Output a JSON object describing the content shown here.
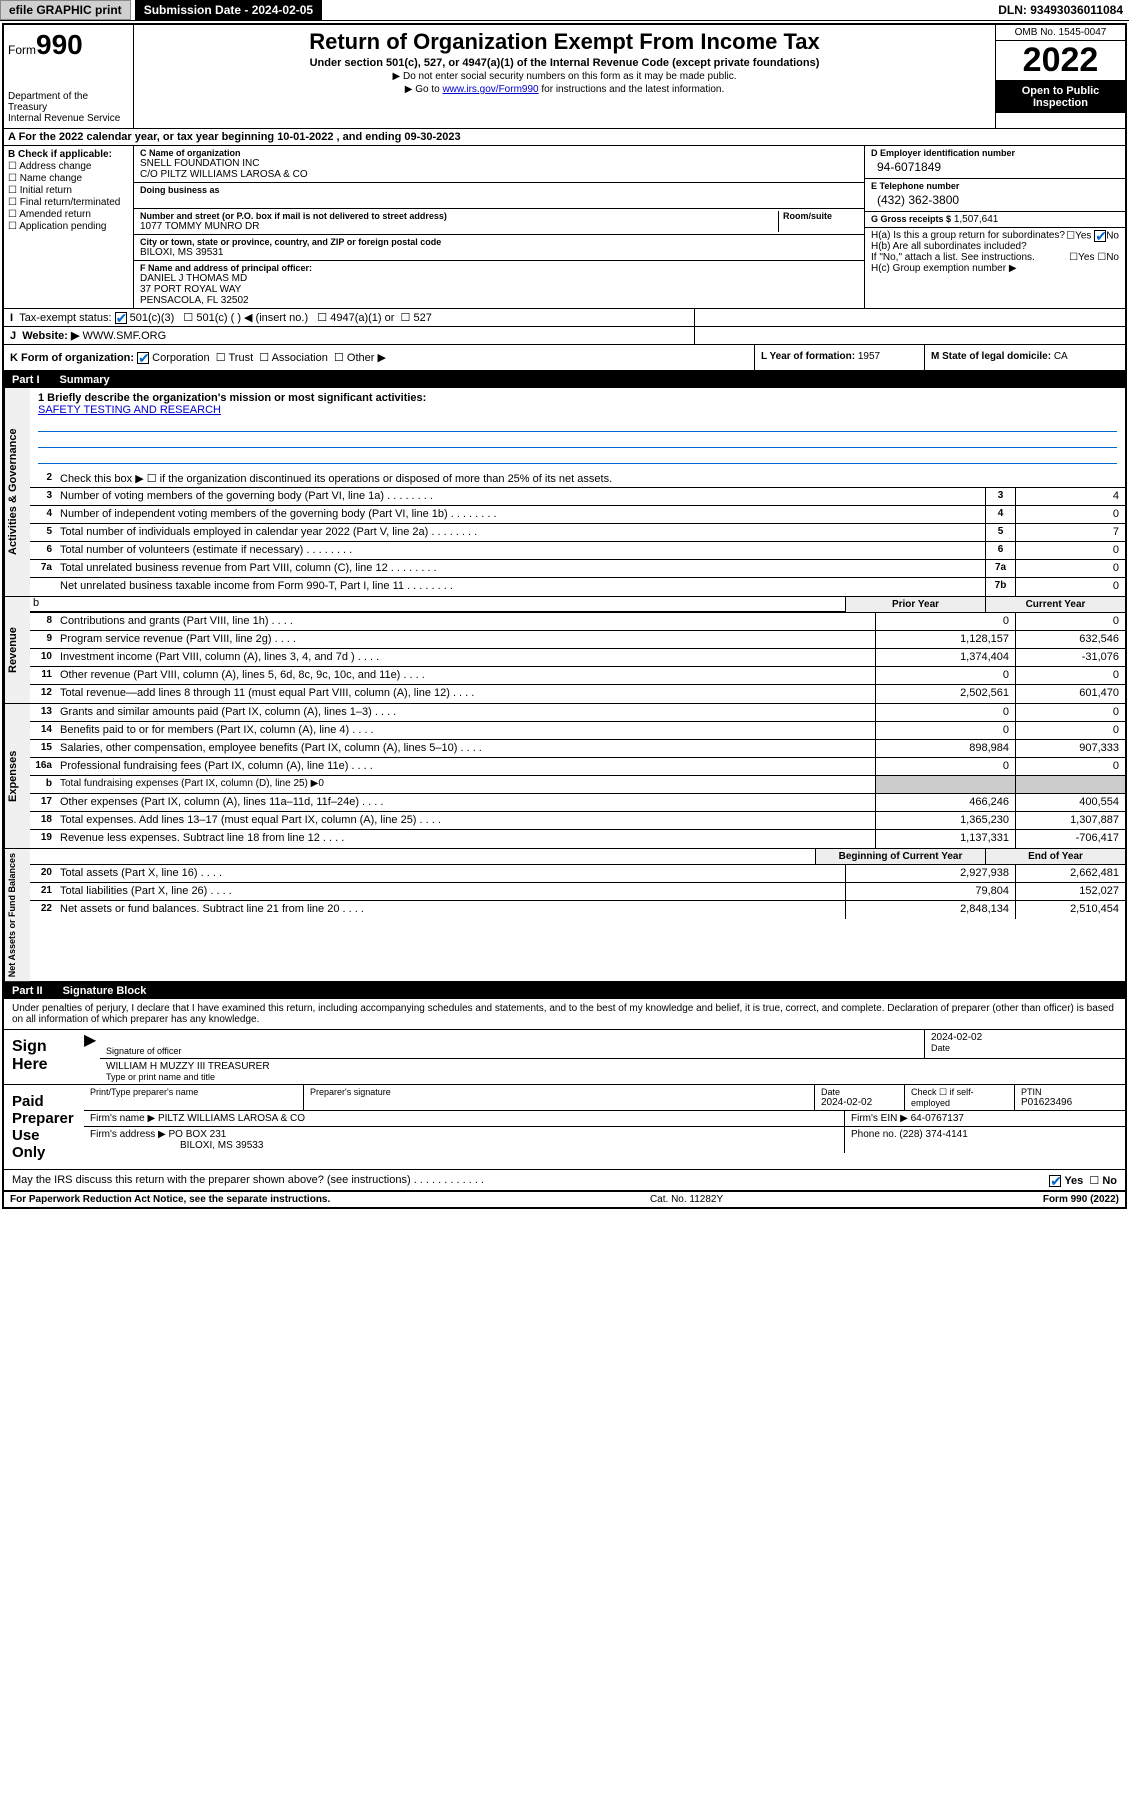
{
  "topbar": {
    "efile": "efile GRAPHIC print",
    "subdate_label": "Submission Date - 2024-02-05",
    "dln": "DLN: 93493036011084"
  },
  "header": {
    "form_word": "Form",
    "form_num": "990",
    "dept": "Department of the Treasury",
    "irs": "Internal Revenue Service",
    "title": "Return of Organization Exempt From Income Tax",
    "sub": "Under section 501(c), 527, or 4947(a)(1) of the Internal Revenue Code (except private foundations)",
    "note1": "▶ Do not enter social security numbers on this form as it may be made public.",
    "note2_pre": "▶ Go to ",
    "note2_link": "www.irs.gov/Form990",
    "note2_post": " for instructions and the latest information.",
    "omb": "OMB No. 1545-0047",
    "year": "2022",
    "open": "Open to Public Inspection"
  },
  "row_a": "A For the 2022 calendar year, or tax year beginning 10-01-2022   , and ending 09-30-2023",
  "sec_b": {
    "hdr": "B Check if applicable:",
    "items": [
      "Address change",
      "Name change",
      "Initial return",
      "Final return/terminated",
      "Amended return",
      "Application pending"
    ]
  },
  "sec_c": {
    "name_lab": "C Name of organization",
    "name1": "SNELL FOUNDATION INC",
    "name2": "C/O PILTZ WILLIAMS LAROSA & CO",
    "dba_lab": "Doing business as",
    "addr_lab": "Number and street (or P.O. box if mail is not delivered to street address)",
    "room_lab": "Room/suite",
    "addr": "1077 TOMMY MUNRO DR",
    "city_lab": "City or town, state or province, country, and ZIP or foreign postal code",
    "city": "BILOXI, MS  39531",
    "officer_lab": "F Name and address of principal officer:",
    "officer1": "DANIEL J THOMAS MD",
    "officer2": "37 PORT ROYAL WAY",
    "officer3": "PENSACOLA, FL  32502"
  },
  "sec_d": {
    "ein_lab": "D Employer identification number",
    "ein": "94-6071849",
    "tel_lab": "E Telephone number",
    "tel": "(432) 362-3800",
    "gross_lab": "G Gross receipts $",
    "gross": "1,507,641"
  },
  "sec_h": {
    "ha": "H(a)  Is this a group return for subordinates?",
    "hb": "H(b)  Are all subordinates included?",
    "hb_note": "If \"No,\" attach a list. See instructions.",
    "hc": "H(c)  Group exemption number ▶",
    "yes": "Yes",
    "no": "No"
  },
  "row_i": {
    "lab": "Tax-exempt status:",
    "o1": "501(c)(3)",
    "o2": "501(c) (  ) ◀ (insert no.)",
    "o3": "4947(a)(1) or",
    "o4": "527"
  },
  "row_j": {
    "lab": "Website: ▶",
    "val": "WWW.SMF.ORG"
  },
  "row_k": {
    "lab": "K Form of organization:",
    "o1": "Corporation",
    "o2": "Trust",
    "o3": "Association",
    "o4": "Other ▶",
    "l_lab": "L Year of formation:",
    "l_val": "1957",
    "m_lab": "M State of legal domicile:",
    "m_val": "CA"
  },
  "parts": {
    "p1": "Part I",
    "p1t": "Summary",
    "p2": "Part II",
    "p2t": "Signature Block"
  },
  "mission": {
    "l1": "1  Briefly describe the organization's mission or most significant activities:",
    "text": "SAFETY TESTING AND RESEARCH"
  },
  "sidebars": {
    "s1": "Activities & Governance",
    "s2": "Revenue",
    "s3": "Expenses",
    "s4": "Net Assets or Fund Balances"
  },
  "colhdr": {
    "prior": "Prior Year",
    "curr": "Current Year",
    "boy": "Beginning of Current Year",
    "eoy": "End of Year"
  },
  "gov": [
    {
      "n": "2",
      "d": "Check this box ▶ ☐  if the organization discontinued its operations or disposed of more than 25% of its net assets."
    },
    {
      "n": "3",
      "d": "Number of voting members of the governing body (Part VI, line 1a)",
      "c": "3",
      "v": "4"
    },
    {
      "n": "4",
      "d": "Number of independent voting members of the governing body (Part VI, line 1b)",
      "c": "4",
      "v": "0"
    },
    {
      "n": "5",
      "d": "Total number of individuals employed in calendar year 2022 (Part V, line 2a)",
      "c": "5",
      "v": "7"
    },
    {
      "n": "6",
      "d": "Total number of volunteers (estimate if necessary)",
      "c": "6",
      "v": "0"
    },
    {
      "n": "7a",
      "d": "Total unrelated business revenue from Part VIII, column (C), line 12",
      "c": "7a",
      "v": "0"
    },
    {
      "n": "",
      "d": "Net unrelated business taxable income from Form 990-T, Part I, line 11",
      "c": "7b",
      "v": "0"
    }
  ],
  "rev": [
    {
      "n": "8",
      "d": "Contributions and grants (Part VIII, line 1h)",
      "p": "0",
      "c": "0"
    },
    {
      "n": "9",
      "d": "Program service revenue (Part VIII, line 2g)",
      "p": "1,128,157",
      "c": "632,546"
    },
    {
      "n": "10",
      "d": "Investment income (Part VIII, column (A), lines 3, 4, and 7d )",
      "p": "1,374,404",
      "c": "-31,076"
    },
    {
      "n": "11",
      "d": "Other revenue (Part VIII, column (A), lines 5, 6d, 8c, 9c, 10c, and 11e)",
      "p": "0",
      "c": "0"
    },
    {
      "n": "12",
      "d": "Total revenue—add lines 8 through 11 (must equal Part VIII, column (A), line 12)",
      "p": "2,502,561",
      "c": "601,470"
    }
  ],
  "exp": [
    {
      "n": "13",
      "d": "Grants and similar amounts paid (Part IX, column (A), lines 1–3)",
      "p": "0",
      "c": "0"
    },
    {
      "n": "14",
      "d": "Benefits paid to or for members (Part IX, column (A), line 4)",
      "p": "0",
      "c": "0"
    },
    {
      "n": "15",
      "d": "Salaries, other compensation, employee benefits (Part IX, column (A), lines 5–10)",
      "p": "898,984",
      "c": "907,333"
    },
    {
      "n": "16a",
      "d": "Professional fundraising fees (Part IX, column (A), line 11e)",
      "p": "0",
      "c": "0"
    },
    {
      "n": "b",
      "d": "Total fundraising expenses (Part IX, column (D), line 25) ▶0",
      "p": "",
      "c": ""
    },
    {
      "n": "17",
      "d": "Other expenses (Part IX, column (A), lines 11a–11d, 11f–24e)",
      "p": "466,246",
      "c": "400,554"
    },
    {
      "n": "18",
      "d": "Total expenses. Add lines 13–17 (must equal Part IX, column (A), line 25)",
      "p": "1,365,230",
      "c": "1,307,887"
    },
    {
      "n": "19",
      "d": "Revenue less expenses. Subtract line 18 from line 12",
      "p": "1,137,331",
      "c": "-706,417"
    }
  ],
  "net": [
    {
      "n": "20",
      "d": "Total assets (Part X, line 16)",
      "p": "2,927,938",
      "c": "2,662,481"
    },
    {
      "n": "21",
      "d": "Total liabilities (Part X, line 26)",
      "p": "79,804",
      "c": "152,027"
    },
    {
      "n": "22",
      "d": "Net assets or fund balances. Subtract line 21 from line 20",
      "p": "2,848,134",
      "c": "2,510,454"
    }
  ],
  "sig": {
    "intro": "Under penalties of perjury, I declare that I have examined this return, including accompanying schedules and statements, and to the best of my knowledge and belief, it is true, correct, and complete. Declaration of preparer (other than officer) is based on all information of which preparer has any knowledge.",
    "sign_here": "Sign Here",
    "sig_officer": "Signature of officer",
    "date": "Date",
    "date_val": "2024-02-02",
    "name_title": "WILLIAM H MUZZY III TREASURER",
    "name_lab": "Type or print name and title",
    "paid": "Paid Preparer Use Only",
    "pp_name_lab": "Print/Type preparer's name",
    "pp_sig_lab": "Preparer's signature",
    "pp_date": "2024-02-02",
    "pp_check": "Check ☐ if self-employed",
    "ptin_lab": "PTIN",
    "ptin": "P01623496",
    "firm_name_lab": "Firm's name   ▶",
    "firm_name": "PILTZ WILLIAMS LAROSA & CO",
    "firm_ein_lab": "Firm's EIN ▶",
    "firm_ein": "64-0767137",
    "firm_addr_lab": "Firm's address ▶",
    "firm_addr1": "PO BOX 231",
    "firm_addr2": "BILOXI, MS  39533",
    "phone_lab": "Phone no.",
    "phone": "(228) 374-4141",
    "discuss": "May the IRS discuss this return with the preparer shown above? (see instructions)"
  },
  "footer": {
    "l": "For Paperwork Reduction Act Notice, see the separate instructions.",
    "m": "Cat. No. 11282Y",
    "r": "Form 990 (2022)"
  }
}
